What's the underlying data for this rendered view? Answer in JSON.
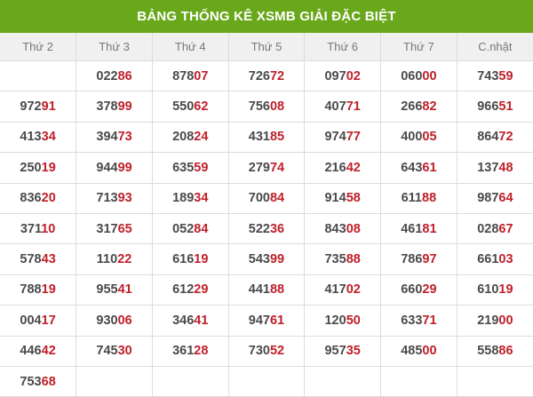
{
  "title": "BẢNG THỐNG KÊ XSMB GIẢI ĐẶC BIỆT",
  "colors": {
    "title_bg": "#69a71b",
    "highlight": "#c0202a",
    "text": "#4a4a4a"
  },
  "columns": [
    "Thứ 2",
    "Thứ 3",
    "Thứ 4",
    "Thứ 5",
    "Thứ 6",
    "Thứ 7",
    "C.nhật"
  ],
  "rows": [
    [
      "",
      "02286",
      "87807",
      "72672",
      "09702",
      "06000",
      "74359"
    ],
    [
      "97291",
      "37899",
      "55062",
      "75608",
      "40771",
      "26682",
      "96651"
    ],
    [
      "41334",
      "39473",
      "20824",
      "43185",
      "97477",
      "40005",
      "86472"
    ],
    [
      "25019",
      "94499",
      "63559",
      "27974",
      "21642",
      "64361",
      "13748"
    ],
    [
      "83620",
      "71393",
      "18934",
      "70084",
      "91458",
      "61188",
      "98764"
    ],
    [
      "37110",
      "31765",
      "05284",
      "52236",
      "84308",
      "46181",
      "02867"
    ],
    [
      "57843",
      "11022",
      "61619",
      "54399",
      "73588",
      "78697",
      "66103"
    ],
    [
      "78819",
      "95541",
      "61229",
      "44188",
      "41702",
      "66029",
      "61019"
    ],
    [
      "00417",
      "93006",
      "34641",
      "94761",
      "12050",
      "63371",
      "21900"
    ],
    [
      "44642",
      "74530",
      "36128",
      "73052",
      "95735",
      "48500",
      "55886"
    ],
    [
      "75368",
      "",
      "",
      "",
      "",
      "",
      ""
    ]
  ]
}
